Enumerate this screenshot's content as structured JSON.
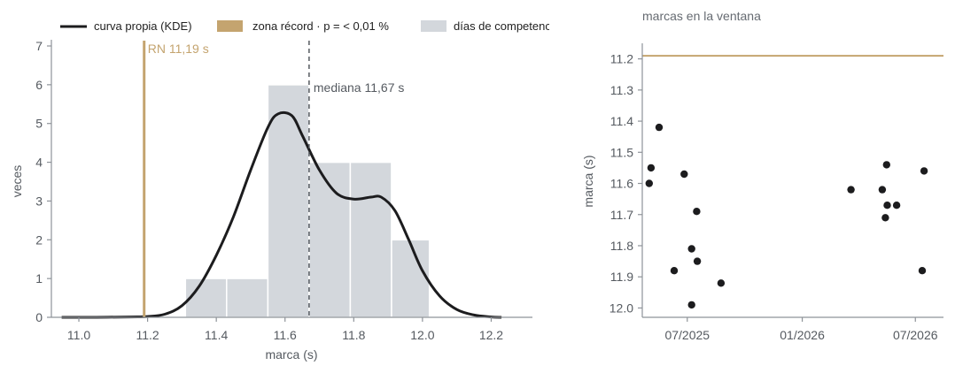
{
  "colors": {
    "hist": "#d3d7dc",
    "kde": "#1c1c1e",
    "record": "#c4a46f",
    "median": "#555a60",
    "axis": "#8e9399",
    "dots": "#1c1c1e"
  },
  "chart_data": [
    {
      "type": "bar",
      "subtype": "histogram-with-kde",
      "xlabel": "marca (s)",
      "ylabel": "veces",
      "xlim": [
        10.92,
        12.32
      ],
      "ylim": [
        0,
        7
      ],
      "xticks": [
        11.0,
        11.2,
        11.4,
        11.6,
        11.8,
        12.0,
        12.2
      ],
      "xtick_labels": [
        "11.0",
        "11.2",
        "11.4",
        "11.6",
        "11.8",
        "12.0",
        "12.2"
      ],
      "yticks": [
        0,
        1,
        2,
        3,
        4,
        5,
        6,
        7
      ],
      "ytick_labels": [
        "0",
        "1",
        "2",
        "3",
        "4",
        "5",
        "6",
        "7"
      ],
      "bins": [
        {
          "from": 11.31,
          "to": 11.43,
          "count": 1
        },
        {
          "from": 11.43,
          "to": 11.55,
          "count": 1
        },
        {
          "from": 11.55,
          "to": 11.67,
          "count": 6
        },
        {
          "from": 11.67,
          "to": 11.79,
          "count": 4
        },
        {
          "from": 11.79,
          "to": 11.91,
          "count": 4
        },
        {
          "from": 11.91,
          "to": 12.02,
          "count": 2
        }
      ],
      "kde": {
        "x": [
          10.95,
          11.05,
          11.15,
          11.2,
          11.25,
          11.3,
          11.35,
          11.4,
          11.45,
          11.5,
          11.55,
          11.58,
          11.62,
          11.65,
          11.7,
          11.75,
          11.8,
          11.85,
          11.88,
          11.92,
          11.96,
          12.0,
          12.05,
          12.1,
          12.15,
          12.2,
          12.23
        ],
        "y": [
          0,
          0,
          0.01,
          0.02,
          0.08,
          0.3,
          0.8,
          1.6,
          2.6,
          3.8,
          4.9,
          5.25,
          5.2,
          4.7,
          3.8,
          3.2,
          3.05,
          3.1,
          3.1,
          2.75,
          2.0,
          1.2,
          0.55,
          0.2,
          0.06,
          0.01,
          0
        ]
      },
      "record_line": {
        "x": 11.19,
        "label": "RN 11,19 s"
      },
      "median_line": {
        "x": 11.67,
        "label": "mediana 11,67 s"
      },
      "legend": {
        "placement": "top",
        "entries": [
          "curva propia (KDE)",
          "zona récord · p = < 0,01 %",
          "días de competencia"
        ]
      }
    },
    {
      "type": "scatter",
      "title": "marcas en la ventana",
      "ylabel": "marca (s)",
      "y_inverted": true,
      "ylim": [
        12.03,
        11.15
      ],
      "xlim": [
        "2025-04-20",
        "2026-08-15"
      ],
      "xtick_dates": [
        "2025-07-01",
        "2026-01-01",
        "2026-07-01"
      ],
      "xtick_labels": [
        "07/2025",
        "01/2026",
        "07/2026"
      ],
      "yticks": [
        11.2,
        11.3,
        11.4,
        11.5,
        11.6,
        11.7,
        11.8,
        11.9,
        12.0
      ],
      "ytick_labels": [
        "11.2",
        "11.3",
        "11.4",
        "11.5",
        "11.6",
        "11.7",
        "11.8",
        "11.9",
        "12.0"
      ],
      "record_line": {
        "y": 11.19
      },
      "points": [
        {
          "x": "2025-05-01",
          "y": 11.6
        },
        {
          "x": "2025-05-04",
          "y": 11.55
        },
        {
          "x": "2025-05-17",
          "y": 11.42
        },
        {
          "x": "2025-06-10",
          "y": 11.88
        },
        {
          "x": "2025-06-26",
          "y": 11.57
        },
        {
          "x": "2025-07-08",
          "y": 11.81
        },
        {
          "x": "2025-07-08",
          "y": 11.99
        },
        {
          "x": "2025-07-16",
          "y": 11.69
        },
        {
          "x": "2025-07-17",
          "y": 11.85
        },
        {
          "x": "2025-08-24",
          "y": 11.92
        },
        {
          "x": "2026-03-20",
          "y": 11.62
        },
        {
          "x": "2026-05-09",
          "y": 11.62
        },
        {
          "x": "2026-05-14",
          "y": 11.71
        },
        {
          "x": "2026-05-16",
          "y": 11.54
        },
        {
          "x": "2026-05-17",
          "y": 11.67
        },
        {
          "x": "2026-06-01",
          "y": 11.67
        },
        {
          "x": "2026-07-12",
          "y": 11.88
        },
        {
          "x": "2026-07-15",
          "y": 11.56
        }
      ]
    }
  ]
}
